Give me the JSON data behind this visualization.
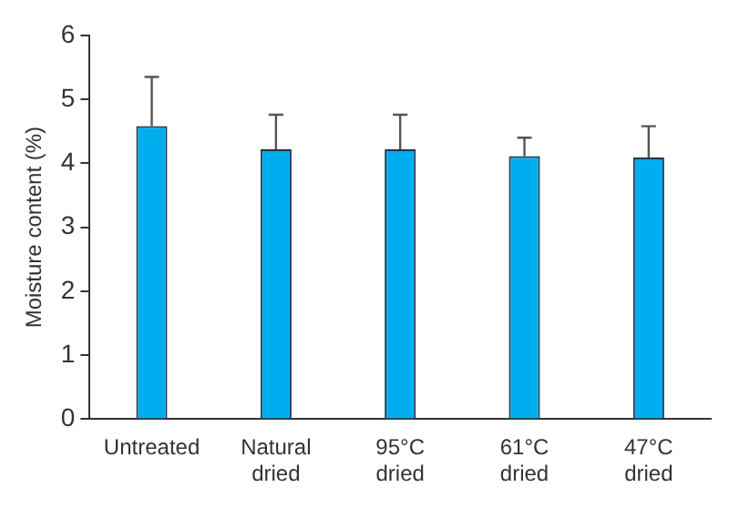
{
  "chart_data": {
    "type": "bar",
    "ylabel": "Moisture content (%)",
    "categories": [
      "Untreated",
      "Natural dried",
      "95°C dried",
      "61°C dried",
      "47°C dried"
    ],
    "values": [
      4.58,
      4.22,
      4.22,
      4.11,
      4.09
    ],
    "errors": [
      [
        4.58,
        5.35
      ],
      [
        4.22,
        4.76
      ],
      [
        4.22,
        4.76
      ],
      [
        4.11,
        4.4
      ],
      [
        4.09,
        4.58
      ]
    ],
    "color": "#00aeef",
    "ylim": [
      0,
      6
    ],
    "yticks": [
      0,
      1,
      2,
      3,
      4,
      5,
      6
    ],
    "grid": false,
    "legend": false
  }
}
